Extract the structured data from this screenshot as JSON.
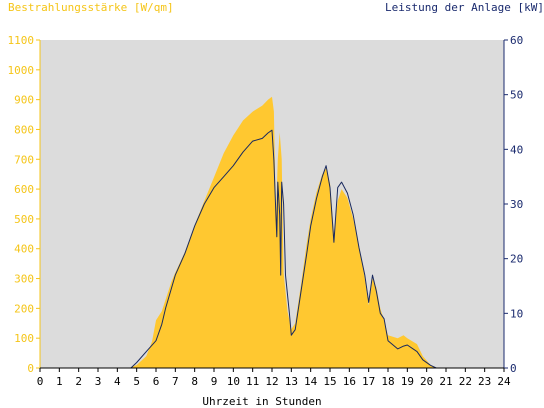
{
  "chart_data": {
    "type": "area",
    "left_axis_title": "Bestrahlungsstärke [W/qm]",
    "right_axis_title": "Leistung der Anlage [kW]",
    "xlabel": "Uhrzeit in Stunden",
    "xlim": [
      0,
      24
    ],
    "ylim_left": [
      0,
      1100
    ],
    "ylim_right": [
      0,
      60
    ],
    "x_ticks": [
      "0",
      "1",
      "2",
      "3",
      "4",
      "5",
      "6",
      "7",
      "8",
      "9",
      "10",
      "11",
      "12",
      "13",
      "14",
      "15",
      "16",
      "17",
      "18",
      "19",
      "20",
      "21",
      "22",
      "23",
      "24"
    ],
    "y_left_ticks": [
      "0",
      "100",
      "200",
      "300",
      "400",
      "500",
      "600",
      "700",
      "800",
      "900",
      "1000",
      "1100"
    ],
    "y_right_ticks": [
      "0",
      "10",
      "20",
      "30",
      "40",
      "50",
      "60"
    ],
    "grid": false,
    "colors": {
      "plot_background": "#dcdcdc",
      "irradiance_fill": "#ffc830",
      "power_line": "#1a2a5e",
      "left_axis_text": "#f5c518",
      "right_axis_text": "#1a2a6e",
      "x_axis_text": "#000000"
    },
    "series": [
      {
        "name": "Bestrahlungsstärke [W/qm]",
        "axis": "left",
        "style": "area",
        "points": [
          [
            0,
            0
          ],
          [
            4.6,
            0
          ],
          [
            5.0,
            10
          ],
          [
            5.5,
            40
          ],
          [
            5.8,
            90
          ],
          [
            6.0,
            160
          ],
          [
            6.3,
            190
          ],
          [
            6.5,
            230
          ],
          [
            6.8,
            290
          ],
          [
            7.0,
            320
          ],
          [
            7.5,
            390
          ],
          [
            8.0,
            480
          ],
          [
            8.5,
            560
          ],
          [
            9.0,
            640
          ],
          [
            9.5,
            720
          ],
          [
            10.0,
            780
          ],
          [
            10.5,
            830
          ],
          [
            11.0,
            860
          ],
          [
            11.5,
            880
          ],
          [
            11.8,
            900
          ],
          [
            12.0,
            910
          ],
          [
            12.1,
            860
          ],
          [
            12.2,
            500
          ],
          [
            12.3,
            700
          ],
          [
            12.4,
            790
          ],
          [
            12.5,
            700
          ],
          [
            12.6,
            320
          ],
          [
            12.8,
            190
          ],
          [
            13.0,
            130
          ],
          [
            13.2,
            150
          ],
          [
            13.5,
            280
          ],
          [
            13.8,
            420
          ],
          [
            14.0,
            500
          ],
          [
            14.3,
            590
          ],
          [
            14.6,
            650
          ],
          [
            14.8,
            670
          ],
          [
            15.0,
            620
          ],
          [
            15.2,
            450
          ],
          [
            15.4,
            560
          ],
          [
            15.6,
            600
          ],
          [
            15.9,
            570
          ],
          [
            16.2,
            500
          ],
          [
            16.5,
            410
          ],
          [
            16.8,
            300
          ],
          [
            17.0,
            210
          ],
          [
            17.2,
            300
          ],
          [
            17.4,
            270
          ],
          [
            17.6,
            200
          ],
          [
            17.8,
            160
          ],
          [
            18.0,
            110
          ],
          [
            18.5,
            100
          ],
          [
            18.8,
            110
          ],
          [
            19.0,
            100
          ],
          [
            19.5,
            80
          ],
          [
            19.8,
            40
          ],
          [
            20.2,
            10
          ],
          [
            20.5,
            0
          ],
          [
            24,
            0
          ]
        ]
      },
      {
        "name": "Leistung der Anlage [kW]",
        "axis": "right",
        "style": "line",
        "points": [
          [
            0,
            0
          ],
          [
            4.7,
            0
          ],
          [
            5.0,
            1
          ],
          [
            5.5,
            3
          ],
          [
            6.0,
            5
          ],
          [
            6.3,
            8
          ],
          [
            6.5,
            11
          ],
          [
            7.0,
            17
          ],
          [
            7.5,
            21
          ],
          [
            8.0,
            26
          ],
          [
            8.5,
            30
          ],
          [
            9.0,
            33
          ],
          [
            9.5,
            35
          ],
          [
            10.0,
            37
          ],
          [
            10.5,
            39.5
          ],
          [
            11.0,
            41.5
          ],
          [
            11.5,
            42
          ],
          [
            11.8,
            43
          ],
          [
            12.0,
            43.5
          ],
          [
            12.1,
            38
          ],
          [
            12.2,
            28
          ],
          [
            12.25,
            24
          ],
          [
            12.3,
            34
          ],
          [
            12.4,
            28
          ],
          [
            12.45,
            17
          ],
          [
            12.5,
            34
          ],
          [
            12.6,
            30
          ],
          [
            12.7,
            17
          ],
          [
            12.9,
            10
          ],
          [
            13.0,
            6
          ],
          [
            13.2,
            7
          ],
          [
            13.5,
            14
          ],
          [
            13.8,
            21
          ],
          [
            14.0,
            26
          ],
          [
            14.3,
            31
          ],
          [
            14.6,
            35
          ],
          [
            14.8,
            37
          ],
          [
            15.0,
            33
          ],
          [
            15.2,
            23
          ],
          [
            15.4,
            33
          ],
          [
            15.6,
            34
          ],
          [
            15.9,
            32
          ],
          [
            16.2,
            28
          ],
          [
            16.5,
            22
          ],
          [
            16.8,
            17
          ],
          [
            17.0,
            12
          ],
          [
            17.2,
            17
          ],
          [
            17.4,
            14
          ],
          [
            17.6,
            10
          ],
          [
            17.8,
            9
          ],
          [
            18.0,
            5
          ],
          [
            18.5,
            3.5
          ],
          [
            18.8,
            4
          ],
          [
            19.0,
            4.2
          ],
          [
            19.5,
            3
          ],
          [
            19.8,
            1.5
          ],
          [
            20.2,
            0.5
          ],
          [
            20.5,
            0
          ],
          [
            24,
            0
          ]
        ]
      }
    ]
  }
}
